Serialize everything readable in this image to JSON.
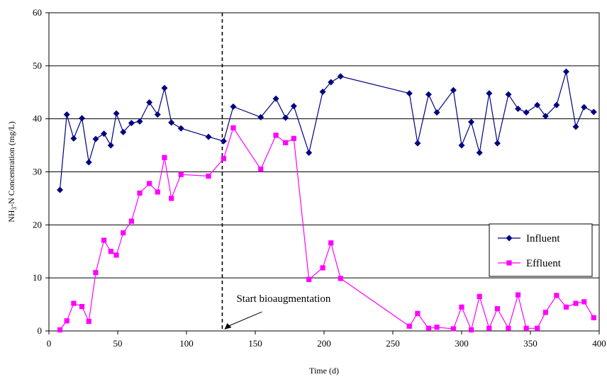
{
  "chart_data": {
    "type": "line",
    "xlabel": "Time (d)",
    "ylabel_main": "NH",
    "ylabel_sub": "3",
    "ylabel_rest": "-N Concentration (mg/L)",
    "xlim": [
      0,
      400
    ],
    "ylim": [
      0,
      60
    ],
    "xticks": [
      0,
      50,
      100,
      150,
      200,
      250,
      300,
      350,
      400
    ],
    "yticks": [
      0,
      10,
      20,
      30,
      40,
      50,
      60
    ],
    "grid": "horizontal",
    "legend_position": "right",
    "annotation": {
      "text": "Start bioaugmentation",
      "x": 126
    },
    "series": [
      {
        "name": "Influent",
        "color": "#000080",
        "marker": "diamond",
        "x": [
          8,
          13,
          18,
          24,
          29,
          34,
          40,
          45,
          49,
          54,
          60,
          66,
          73,
          79,
          84,
          89,
          96,
          116,
          127,
          134,
          154,
          165,
          172,
          178,
          189,
          199,
          205,
          212,
          262,
          268,
          276,
          282,
          294,
          300,
          307,
          313,
          320,
          326,
          334,
          341,
          347,
          355,
          361,
          369,
          376,
          383,
          389,
          396
        ],
        "values": [
          26.6,
          40.8,
          36.3,
          40.1,
          31.8,
          36.2,
          37.2,
          35.0,
          41.0,
          37.5,
          39.2,
          39.5,
          43.1,
          40.8,
          45.8,
          39.3,
          38.2,
          36.6,
          35.8,
          42.3,
          40.3,
          43.8,
          40.2,
          42.4,
          33.6,
          45.1,
          46.9,
          48.0,
          44.8,
          35.4,
          44.6,
          41.2,
          45.4,
          35.0,
          39.4,
          33.6,
          44.8,
          35.4,
          44.6,
          41.9,
          41.2,
          42.6,
          40.5,
          42.6,
          48.9,
          38.5,
          42.2,
          41.3
        ]
      },
      {
        "name": "Effluent",
        "color": "#ff00ff",
        "marker": "square",
        "x": [
          8,
          13,
          18,
          24,
          29,
          34,
          40,
          45,
          49,
          54,
          60,
          66,
          73,
          79,
          84,
          89,
          96,
          116,
          127,
          134,
          154,
          165,
          172,
          178,
          189,
          199,
          205,
          212,
          262,
          268,
          276,
          282,
          294,
          300,
          307,
          313,
          320,
          326,
          334,
          341,
          347,
          355,
          361,
          369,
          376,
          383,
          389,
          396
        ],
        "values": [
          0.2,
          1.9,
          5.2,
          4.6,
          1.8,
          11.0,
          17.1,
          15.0,
          14.3,
          18.5,
          20.7,
          26.0,
          27.8,
          26.2,
          32.7,
          25.0,
          29.5,
          29.2,
          32.5,
          38.3,
          30.5,
          36.9,
          35.5,
          36.3,
          9.7,
          11.9,
          16.6,
          9.9,
          0.9,
          3.3,
          0.5,
          0.7,
          0.4,
          4.5,
          0.2,
          6.5,
          0.5,
          4.2,
          0.5,
          6.8,
          0.5,
          0.5,
          3.5,
          6.7,
          4.5,
          5.2,
          5.5,
          2.5
        ]
      }
    ]
  }
}
